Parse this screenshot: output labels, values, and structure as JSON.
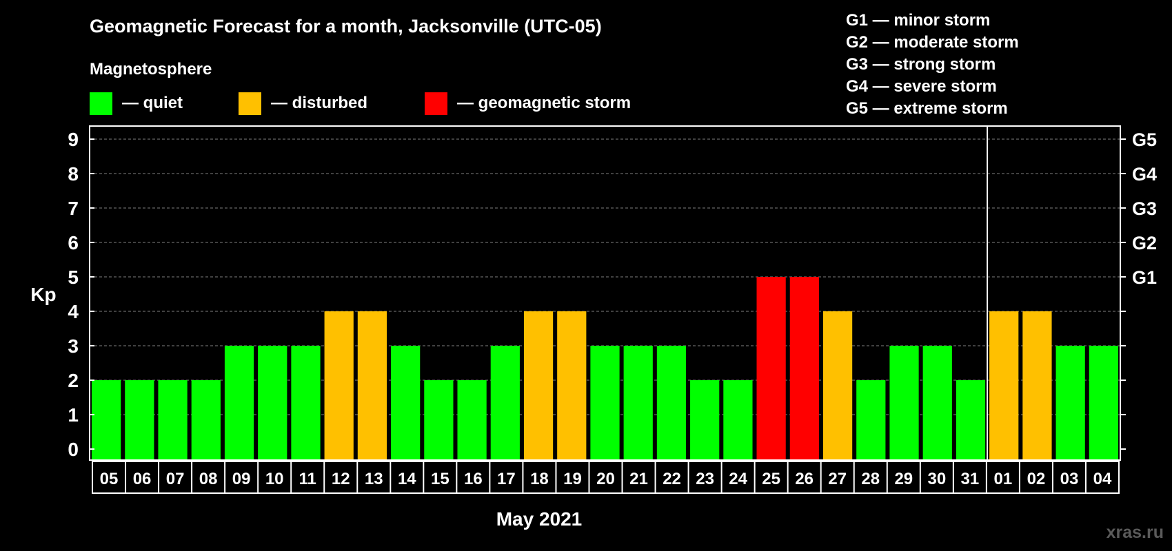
{
  "chart_data": {
    "type": "bar",
    "title": "Geomagnetic Forecast for a month, Jacksonville (UTC-05)",
    "xlabel": "May 2021",
    "ylabel": "Kp",
    "ylim": [
      0,
      9
    ],
    "y_ticks": [
      "0",
      "1",
      "2",
      "3",
      "4",
      "5",
      "6",
      "7",
      "8",
      "9"
    ],
    "right_axis_labels": [
      {
        "kp": 5,
        "label": "G1"
      },
      {
        "kp": 6,
        "label": "G2"
      },
      {
        "kp": 7,
        "label": "G3"
      },
      {
        "kp": 8,
        "label": "G4"
      },
      {
        "kp": 9,
        "label": "G5"
      }
    ],
    "grid": true,
    "month_separator_after": "31",
    "categories": [
      "05",
      "06",
      "07",
      "08",
      "09",
      "10",
      "11",
      "12",
      "13",
      "14",
      "15",
      "16",
      "17",
      "18",
      "19",
      "20",
      "21",
      "22",
      "23",
      "24",
      "25",
      "26",
      "27",
      "28",
      "29",
      "30",
      "31",
      "01",
      "02",
      "03",
      "04"
    ],
    "values": [
      2,
      2,
      2,
      2,
      3,
      3,
      3,
      4,
      4,
      3,
      2,
      2,
      3,
      4,
      4,
      3,
      3,
      3,
      2,
      2,
      5,
      5,
      4,
      2,
      3,
      3,
      2,
      4,
      4,
      3,
      3
    ],
    "status": [
      "quiet",
      "quiet",
      "quiet",
      "quiet",
      "quiet",
      "quiet",
      "quiet",
      "disturbed",
      "disturbed",
      "quiet",
      "quiet",
      "quiet",
      "quiet",
      "disturbed",
      "disturbed",
      "quiet",
      "quiet",
      "quiet",
      "quiet",
      "quiet",
      "storm",
      "storm",
      "disturbed",
      "quiet",
      "quiet",
      "quiet",
      "quiet",
      "disturbed",
      "disturbed",
      "quiet",
      "quiet"
    ],
    "colors": {
      "quiet": "#00ff00",
      "disturbed": "#ffc000",
      "storm": "#ff0000",
      "background": "#000000",
      "text": "#ffffff",
      "grid": "#808080"
    },
    "legend": {
      "title": "Magnetosphere",
      "items": [
        {
          "key": "quiet",
          "label": "— quiet"
        },
        {
          "key": "disturbed",
          "label": "— disturbed"
        },
        {
          "key": "storm",
          "label": "— geomagnetic storm"
        }
      ]
    },
    "g_scale": [
      "G1 — minor storm",
      "G2 — moderate storm",
      "G3 — strong storm",
      "G4 — severe storm",
      "G5 — extreme storm"
    ],
    "watermark": "xras.ru"
  }
}
